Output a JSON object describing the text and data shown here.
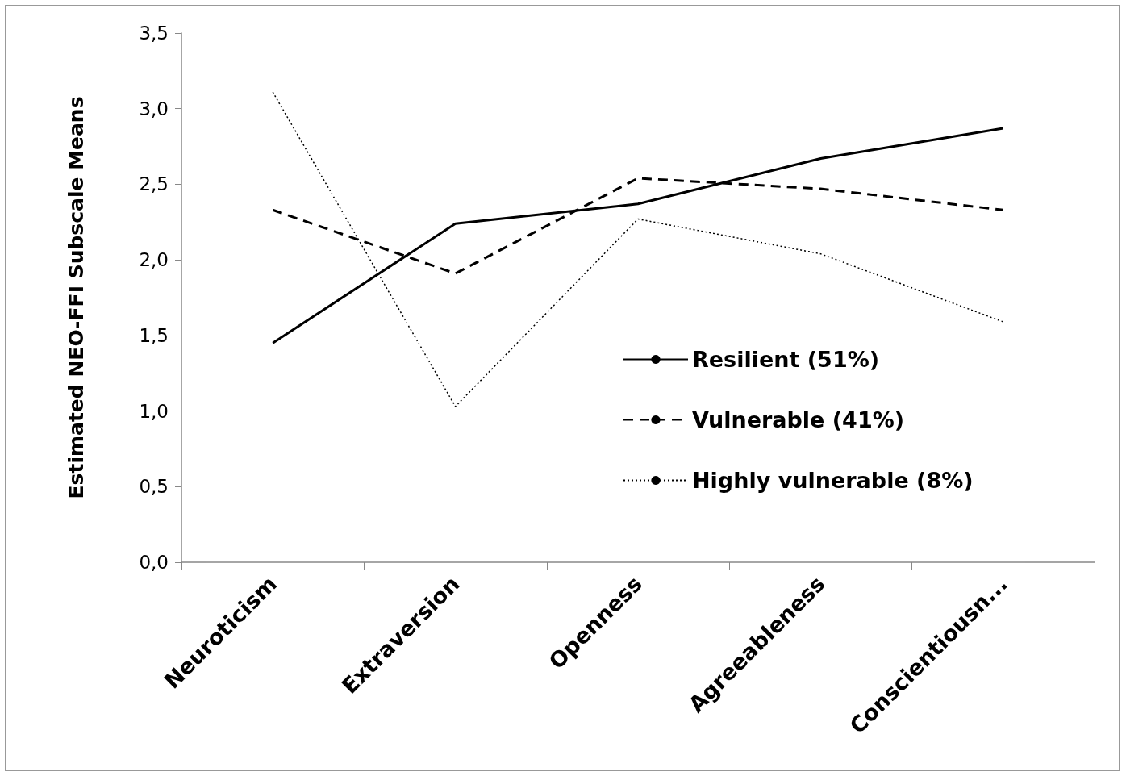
{
  "chart_data": {
    "type": "line",
    "ylabel": "Estimated NEO-FFI Subscale Means",
    "categories": [
      "Neuroticism",
      "Extraversion",
      "Openness",
      "Agreeableness",
      "Conscientiousn..."
    ],
    "series": [
      {
        "name": "Resilient (51%)",
        "color": "#000000",
        "line_style": "solid",
        "values": [
          1.45,
          2.24,
          2.37,
          2.67,
          2.87
        ]
      },
      {
        "name": "Vulnerable (41%)",
        "color": "#000000",
        "line_style": "dashed",
        "values": [
          2.33,
          1.91,
          2.54,
          2.47,
          2.33
        ]
      },
      {
        "name": "Highly vulnerable (8%)",
        "color": "#000000",
        "line_style": "dotted",
        "values": [
          3.11,
          1.03,
          2.27,
          2.04,
          1.59
        ]
      }
    ],
    "ylim": [
      0,
      3.5
    ],
    "yticks": [
      {
        "value": 0,
        "label": "0,0"
      },
      {
        "value": 0.5,
        "label": "0,5"
      },
      {
        "value": 1,
        "label": "1,0"
      },
      {
        "value": 1.5,
        "label": "1,5"
      },
      {
        "value": 2,
        "label": "2,0"
      },
      {
        "value": 2.5,
        "label": "2,5"
      },
      {
        "value": 3,
        "label": "3,0"
      },
      {
        "value": 3.5,
        "label": "3,5"
      }
    ],
    "grid": false,
    "legend": "right",
    "marker": "none"
  }
}
